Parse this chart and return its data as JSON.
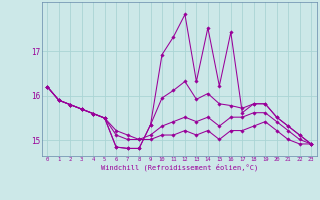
{
  "xlabel": "Windchill (Refroidissement éolien,°C)",
  "background_color": "#cce8e8",
  "grid_color": "#aad4d4",
  "line_color": "#990099",
  "hours": [
    0,
    1,
    2,
    3,
    4,
    5,
    6,
    7,
    8,
    9,
    10,
    11,
    12,
    13,
    14,
    15,
    16,
    17,
    18,
    19,
    20,
    21,
    22,
    23
  ],
  "series1": [
    16.2,
    15.9,
    15.8,
    15.7,
    15.6,
    15.5,
    14.85,
    14.82,
    14.82,
    15.35,
    16.92,
    17.32,
    17.82,
    16.32,
    17.52,
    16.22,
    17.42,
    15.62,
    15.82,
    15.82,
    15.52,
    15.32,
    15.12,
    14.92
  ],
  "series2": [
    16.2,
    15.9,
    15.8,
    15.7,
    15.6,
    15.5,
    14.85,
    14.82,
    14.82,
    15.35,
    15.95,
    16.12,
    16.32,
    15.92,
    16.05,
    15.82,
    15.78,
    15.72,
    15.82,
    15.82,
    15.52,
    15.32,
    15.12,
    14.92
  ],
  "series3": [
    16.2,
    15.9,
    15.8,
    15.7,
    15.6,
    15.5,
    15.12,
    15.02,
    15.02,
    15.12,
    15.32,
    15.42,
    15.52,
    15.42,
    15.52,
    15.32,
    15.52,
    15.52,
    15.62,
    15.62,
    15.42,
    15.22,
    15.02,
    14.92
  ],
  "series4": [
    16.2,
    15.9,
    15.8,
    15.7,
    15.6,
    15.5,
    15.22,
    15.12,
    15.02,
    15.02,
    15.12,
    15.12,
    15.22,
    15.12,
    15.22,
    15.02,
    15.22,
    15.22,
    15.32,
    15.42,
    15.22,
    15.02,
    14.92,
    14.92
  ],
  "ylim": [
    14.65,
    18.1
  ],
  "yticks": [
    15,
    16,
    17
  ],
  "xlim": [
    -0.5,
    23.5
  ]
}
